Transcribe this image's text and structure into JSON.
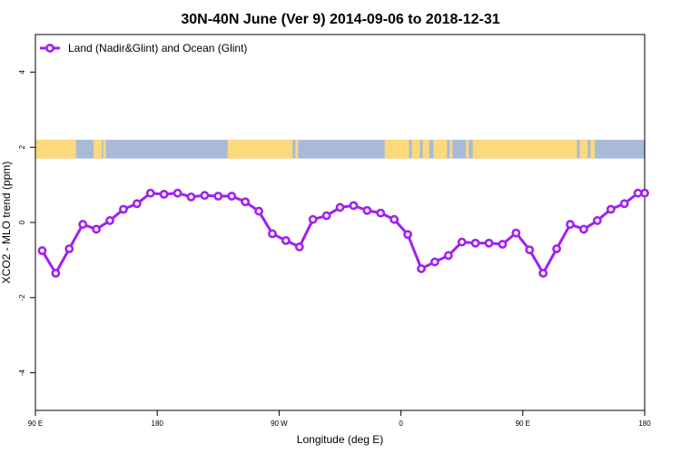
{
  "chart_data": {
    "type": "line",
    "title": "30N-40N June (Ver 9)   2014-09-06 to 2018-12-31",
    "xlabel": "Longitude (deg E)",
    "ylabel": "XCO2 - MLO trend (ppm)",
    "x_tick_labels": [
      "90 E",
      "180",
      "90 W",
      "0",
      "90 E",
      "180"
    ],
    "x_tick_values": [
      90,
      180,
      270,
      360,
      450,
      540
    ],
    "y_tick_labels": [
      "-4",
      "-2",
      "0",
      "2",
      "4"
    ],
    "y_tick_values": [
      -4,
      -2,
      0,
      2,
      4
    ],
    "xlim": [
      90,
      540
    ],
    "ylim": [
      -5,
      5
    ],
    "grid": false,
    "legend_position": "top-left",
    "series": [
      {
        "name": "Land (Nadir&Glint) and Ocean (Glint)",
        "color": "#a020f0",
        "x": [
          95,
          105,
          115,
          125,
          135,
          145,
          155,
          165,
          175,
          185,
          195,
          205,
          215,
          225,
          235,
          245,
          255,
          265,
          275,
          285,
          295,
          305,
          315,
          325,
          335,
          345,
          355,
          365,
          375,
          385,
          395,
          405,
          415,
          425,
          435,
          445,
          455,
          465,
          475,
          485,
          495,
          505,
          515,
          525,
          535,
          540
        ],
        "values": [
          -0.75,
          -1.35,
          -0.7,
          -0.05,
          -0.18,
          0.05,
          0.35,
          0.5,
          0.78,
          0.75,
          0.78,
          0.68,
          0.72,
          0.7,
          0.7,
          0.55,
          0.3,
          -0.3,
          -0.48,
          -0.65,
          0.08,
          0.18,
          0.4,
          0.45,
          0.32,
          0.25,
          0.08,
          -0.32,
          -1.23,
          -1.05,
          -0.88,
          -0.52,
          -0.55,
          -0.55,
          -0.58,
          -0.28,
          -0.73,
          -1.35,
          -0.7,
          -0.05,
          -0.18,
          0.05,
          0.35,
          0.5,
          0.78,
          0.78
        ]
      }
    ],
    "land_mask": {
      "y_range": [
        1.7,
        2.2
      ],
      "ocean_color": "#a7bbd9",
      "land_color": "#fcd97b",
      "land_segments": [
        [
          90,
          120
        ],
        [
          133,
          139
        ],
        [
          140,
          142
        ],
        [
          232,
          280
        ],
        [
          282,
          284
        ],
        [
          348,
          366
        ],
        [
          368,
          374
        ],
        [
          376,
          381
        ],
        [
          384,
          394
        ],
        [
          396,
          398
        ],
        [
          408,
          410
        ],
        [
          413,
          490
        ],
        [
          492,
          498
        ],
        [
          500,
          503
        ]
      ]
    }
  }
}
